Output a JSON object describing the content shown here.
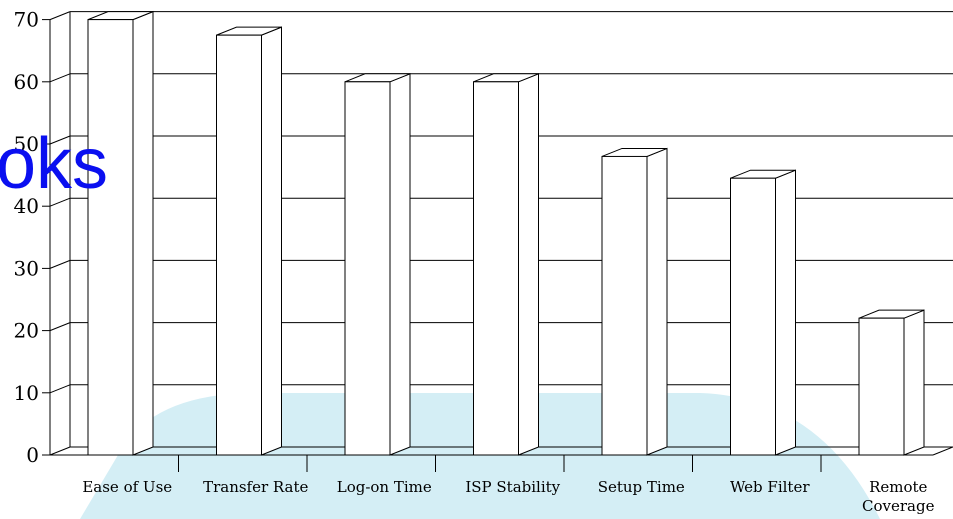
{
  "watermark": {
    "text": "oks",
    "color": "#0a0ff0",
    "band_color": "#d4eef5"
  },
  "chart_data": {
    "type": "bar",
    "style": "3d",
    "categories": [
      "Ease of Use",
      "Transfer Rate",
      "Log-on Time",
      "ISP Stability",
      "Setup Time",
      "Web Filter",
      "Remote Coverage"
    ],
    "category_label_lines": [
      [
        "Ease of Use"
      ],
      [
        "Transfer Rate"
      ],
      [
        "Log-on Time"
      ],
      [
        "ISP Stability"
      ],
      [
        "Setup Time"
      ],
      [
        "Web Filter"
      ],
      [
        "Remote",
        "Coverage"
      ]
    ],
    "values": [
      70,
      67.5,
      60,
      60,
      48,
      44.5,
      22
    ],
    "ylim": [
      0,
      70
    ],
    "yticks": [
      0,
      10,
      20,
      30,
      40,
      50,
      60,
      70
    ],
    "grid": true,
    "legend": "none",
    "title": "",
    "xlabel": "",
    "ylabel": ""
  }
}
